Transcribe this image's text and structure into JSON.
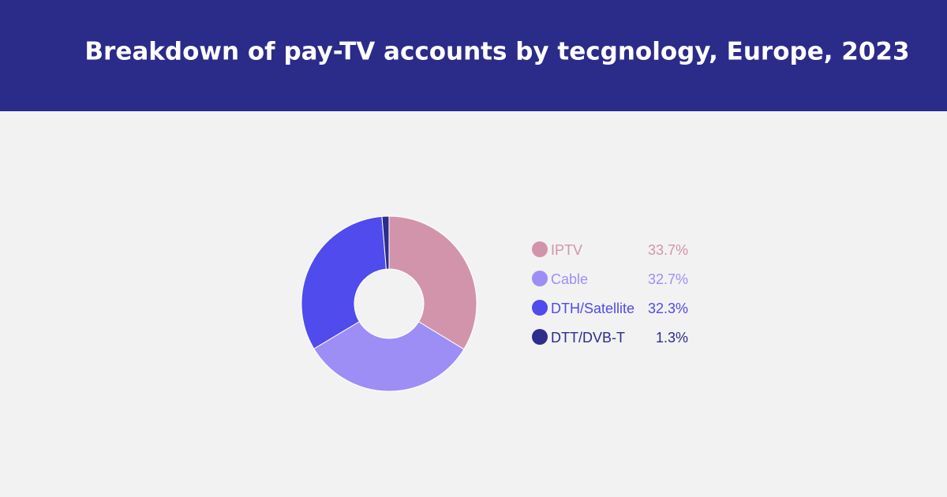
{
  "chart_data": {
    "type": "donut",
    "title": "Breakdown of pay-TV accounts by tecgnology, Europe, 2023",
    "categories": [
      "IPTV",
      "Cable",
      "DTH/Satellite",
      "DTT/DVB-T"
    ],
    "values": [
      33.7,
      32.7,
      32.3,
      1.3
    ],
    "value_labels": [
      "33.7%",
      "32.7%",
      "32.3%",
      "1.3%"
    ],
    "colors": [
      "#d294ab",
      "#9d8ef5",
      "#4f4bec",
      "#2d2d8c"
    ],
    "legend": "right"
  }
}
